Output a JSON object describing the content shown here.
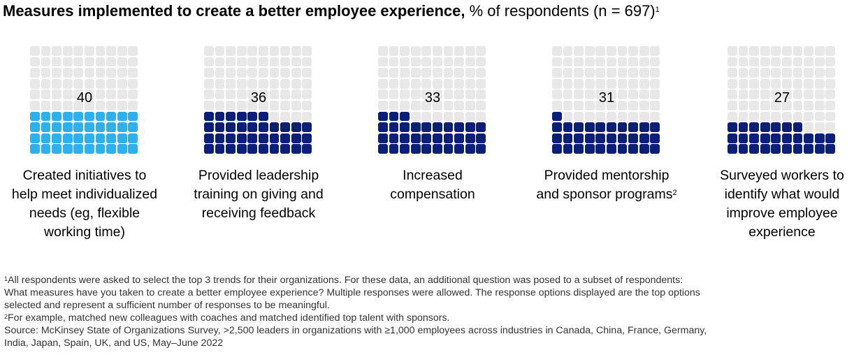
{
  "header": {
    "title_bold": "Measures implemented to create a better employee experience,",
    "title_rest": " % of respondents (n = 697)",
    "title_note": "1"
  },
  "colors": {
    "empty": "#e8e8e8",
    "light_blue": "#2fb0ee",
    "navy": "#0b1f78"
  },
  "chart_data": {
    "type": "waffle",
    "scale": "10 × 10 grid, 1 square = 1% of respondents",
    "categories": [
      "Created initiatives to help meet individualized needs (eg, flexible working time)",
      "Provided leadership training on giving and receiving feedback",
      "Increased compensation",
      "Provided mentorship and sponsor programs",
      "Surveyed workers to identify what would improve employee experience"
    ],
    "values": [
      40,
      36,
      33,
      31,
      27
    ],
    "value_labels": [
      "40",
      "36",
      "33",
      "31",
      "27"
    ],
    "fill_colors": [
      "#2fb0ee",
      "#0b1f78",
      "#0b1f78",
      "#0b1f78",
      "#0b1f78"
    ],
    "labels": [
      "Created initiatives to\nhelp meet individualized\nneeds (eg, flexible\nworking time)",
      "Provided leadership\ntraining on giving and\nreceiving feedback",
      "Increased\ncompensation",
      "Provided mentorship\nand sponsor programs",
      "Surveyed workers to\nidentify what would\nimprove employee\nexperience"
    ],
    "label_notes": [
      "",
      "",
      "",
      "2",
      ""
    ]
  },
  "footnotes": {
    "note1_mark": "1",
    "note1_text": "All respondents were asked to select the top 3 trends for their organizations. For these data, an additional question was posed to a subset of respondents:\n What measures have you taken to create a better employee experience? Multiple responses were allowed. The response options displayed are the top options\n selected and represent a sufficient number of responses to be meaningful.",
    "note2_mark": "2",
    "note2_text": "For example, matched new colleagues with coaches and matched identified top talent with sponsors.",
    "source": " Source: McKinsey State of Organizations Survey, >2,500 leaders in organizations with ≥1,000 employees across industries in Canada, China, France, Germany,\n India, Japan, Spain, UK, and US, May–June 2022"
  }
}
